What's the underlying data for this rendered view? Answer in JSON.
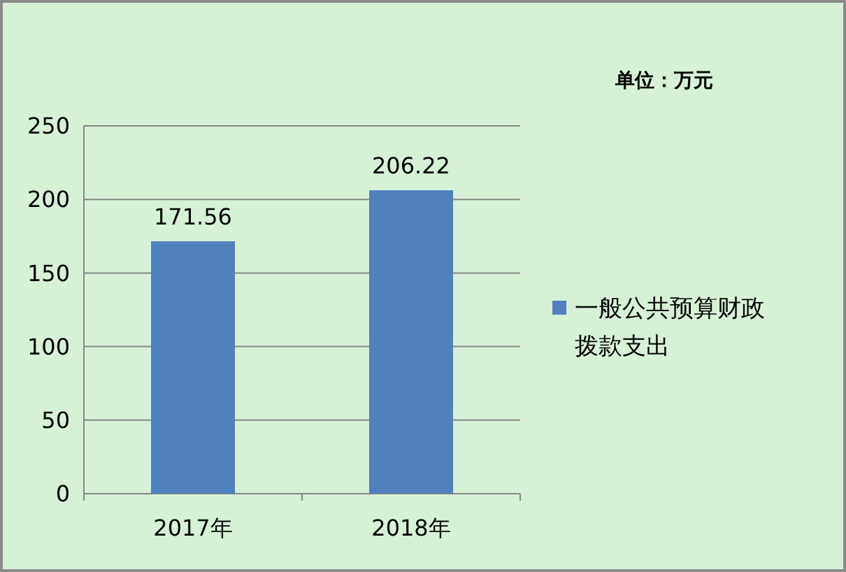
{
  "chart_data": {
    "type": "bar",
    "categories": [
      "2017年",
      "2018年"
    ],
    "series": [
      {
        "name": "一般公共预算财政拨款支出",
        "color": "#4f81bd",
        "values": [
          171.56,
          206.22
        ]
      }
    ],
    "ylim": [
      0,
      250
    ],
    "yticks": [
      0,
      50,
      100,
      150,
      200,
      250
    ],
    "grid": "y",
    "legend": "right",
    "data_labels": true,
    "annotations": [
      "单位：万元"
    ]
  }
}
